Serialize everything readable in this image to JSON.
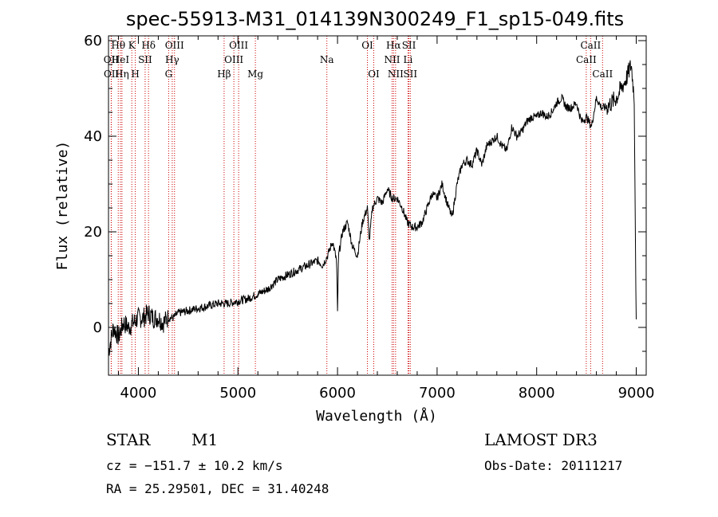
{
  "chart_data": {
    "type": "line",
    "title": "spec-55913-M31_014139N300249_F1_sp15-049.fits",
    "xlabel": "Wavelength (Å)",
    "ylabel": "Flux (relative)",
    "xlim": [
      3700,
      9100
    ],
    "ylim": [
      -10,
      61
    ],
    "xticks": [
      4000,
      5000,
      6000,
      7000,
      8000,
      9000
    ],
    "yticks": [
      0,
      20,
      40,
      60
    ],
    "grid": false,
    "series": [
      {
        "x": [
          3700,
          3750,
          3800,
          3850,
          3900,
          3950,
          4000,
          4050,
          4100,
          4150,
          4200,
          4250,
          4300,
          4350,
          4400,
          4500,
          4600,
          4700,
          4800,
          4850,
          4900,
          5000,
          5100,
          5200,
          5300,
          5400,
          5500,
          5600,
          5700,
          5800,
          5850,
          5900,
          5950,
          5990,
          6000,
          6010,
          6050,
          6100,
          6150,
          6200,
          6250,
          6300,
          6320,
          6350,
          6400,
          6450,
          6500,
          6550,
          6600,
          6650,
          6700,
          6750,
          6800,
          6850,
          6900,
          6950,
          7000,
          7050,
          7100,
          7150,
          7200,
          7250,
          7300,
          7350,
          7400,
          7450,
          7500,
          7550,
          7600,
          7650,
          7700,
          7750,
          7800,
          7850,
          7900,
          7950,
          8000,
          8050,
          8100,
          8150,
          8200,
          8250,
          8300,
          8350,
          8400,
          8450,
          8500,
          8550,
          8600,
          8650,
          8700,
          8750,
          8800,
          8850,
          8900,
          8950,
          8980,
          9000
        ],
        "y": [
          -5,
          0,
          -2,
          1,
          0,
          1,
          2,
          2,
          3,
          2,
          2,
          1,
          2,
          2,
          3,
          3.5,
          4,
          4.5,
          5,
          5,
          5,
          5.5,
          6,
          7,
          8,
          10,
          11,
          12,
          13,
          14,
          13,
          15,
          18,
          14,
          3,
          15,
          20,
          22,
          17,
          15,
          22,
          25,
          18,
          25,
          27,
          26,
          29,
          27,
          27,
          25,
          22,
          21,
          21,
          22,
          25,
          28,
          27,
          30,
          26,
          23,
          30,
          34,
          35,
          34,
          37,
          34,
          38,
          39,
          40,
          38,
          37,
          42,
          40,
          41,
          43,
          44,
          44,
          45,
          44,
          45,
          47,
          48,
          46,
          46,
          47,
          43,
          44,
          42,
          48,
          46,
          46,
          47,
          48,
          50,
          52,
          55,
          48,
          0
        ]
      }
    ],
    "line_markers": [
      {
        "label": "Hθ",
        "wl": 3798,
        "row": 0
      },
      {
        "label": "OII",
        "wl": 3727,
        "row": 1
      },
      {
        "label": "OII",
        "wl": 3729,
        "row": 2
      },
      {
        "label": "HeI",
        "wl": 3820,
        "row": 1
      },
      {
        "label": "Hη",
        "wl": 3835,
        "row": 2
      },
      {
        "label": "K",
        "wl": 3934,
        "row": 0
      },
      {
        "label": "SII",
        "wl": 4068,
        "row": 1
      },
      {
        "label": "H",
        "wl": 3969,
        "row": 2
      },
      {
        "label": "Hδ",
        "wl": 4102,
        "row": 0
      },
      {
        "label": "OIII",
        "wl": 4363,
        "row": 0
      },
      {
        "label": "Hγ",
        "wl": 4340,
        "row": 1
      },
      {
        "label": "G",
        "wl": 4304,
        "row": 2
      },
      {
        "label": "OIII",
        "wl": 5007,
        "row": 0
      },
      {
        "label": "OIII",
        "wl": 4959,
        "row": 1
      },
      {
        "label": "Hβ",
        "wl": 4861,
        "row": 2
      },
      {
        "label": "Mg",
        "wl": 5175,
        "row": 2
      },
      {
        "label": "Na",
        "wl": 5893,
        "row": 1
      },
      {
        "label": "OI",
        "wl": 6300,
        "row": 0
      },
      {
        "label": "OI",
        "wl": 6364,
        "row": 2
      },
      {
        "label": "Hα",
        "wl": 6563,
        "row": 0
      },
      {
        "label": "SII",
        "wl": 6717,
        "row": 0
      },
      {
        "label": "NII",
        "wl": 6548,
        "row": 1
      },
      {
        "label": "Li",
        "wl": 6708,
        "row": 1
      },
      {
        "label": "NII",
        "wl": 6583,
        "row": 2
      },
      {
        "label": "SII",
        "wl": 6731,
        "row": 2
      },
      {
        "label": "CaII",
        "wl": 8542,
        "row": 0
      },
      {
        "label": "CaII",
        "wl": 8498,
        "row": 1
      },
      {
        "label": "CaII",
        "wl": 8662,
        "row": 2
      }
    ]
  },
  "info": {
    "class": "STAR",
    "subclass": "M1",
    "survey": "LAMOST DR3",
    "cz": "cz = −151.7 ± 10.2 km/s",
    "obsdate": "Obs-Date: 20111217",
    "radec": "RA =  25.29501, DEC =  31.40248"
  },
  "colors": {
    "spectrum": "#000000",
    "marker": "#cc0000",
    "axis": "#000000"
  }
}
